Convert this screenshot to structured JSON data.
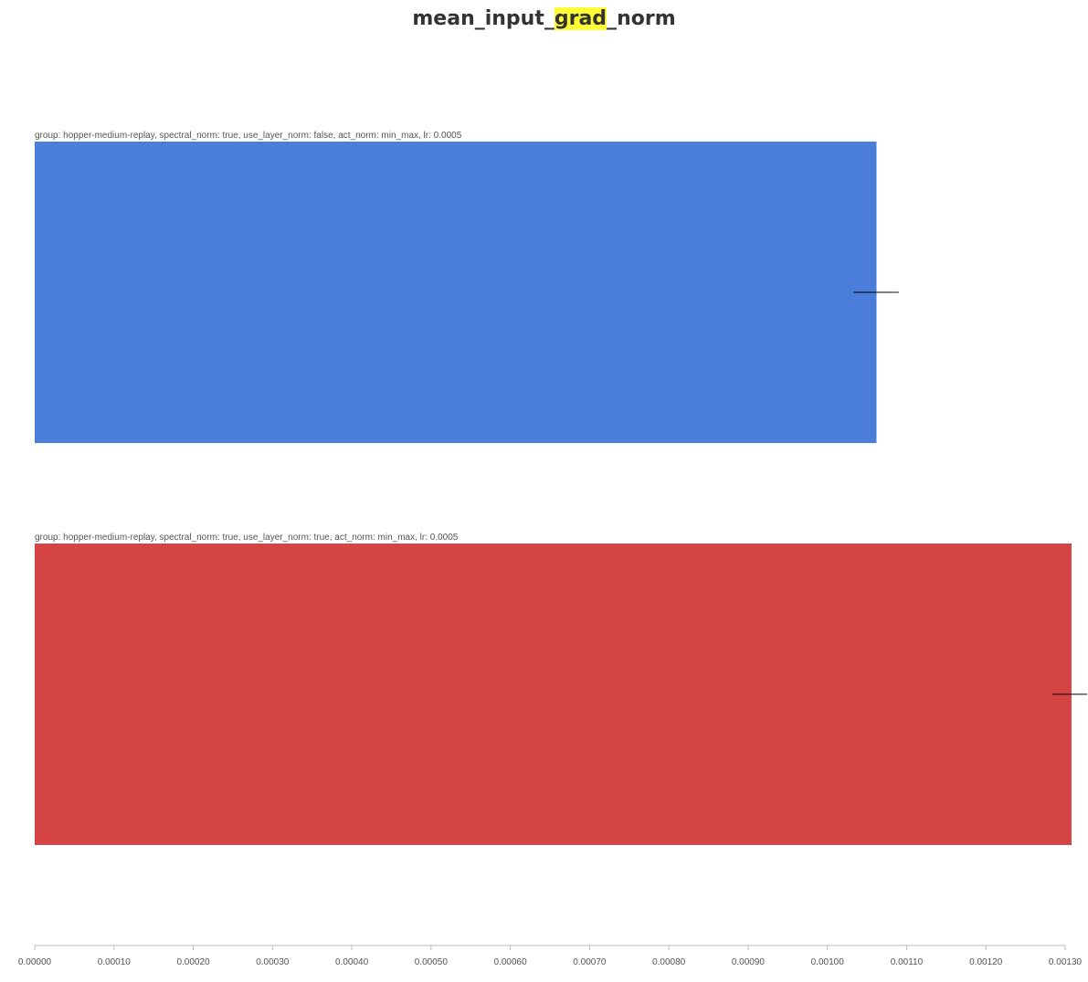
{
  "title": {
    "before": "mean_input_",
    "highlight": "grad",
    "after": "_norm"
  },
  "chart_data": {
    "type": "bar",
    "orientation": "horizontal",
    "title": "mean_input_grad_norm",
    "xlim": [
      0,
      0.0013
    ],
    "x_ticks": [
      "0.00000",
      "0.00010",
      "0.00020",
      "0.00030",
      "0.00040",
      "0.00050",
      "0.00060",
      "0.00070",
      "0.00080",
      "0.00090",
      "0.00100",
      "0.00110",
      "0.00120",
      "0.00130"
    ],
    "x_tick_values": [
      0,
      0.0001,
      0.0002,
      0.0003,
      0.0004,
      0.0005,
      0.0006,
      0.0007,
      0.0008,
      0.0009,
      0.001,
      0.0011,
      0.0012,
      0.0013
    ],
    "series": [
      {
        "name": "group: hopper-medium-replay, spectral_norm: true, use_layer_norm: false, act_norm: min_max, lr: 0.0005",
        "value": 0.001062,
        "error_low": 0.001033,
        "error_high": 0.00109,
        "color": "#4a7ed9"
      },
      {
        "name": "group: hopper-medium-replay, spectral_norm: true, use_layer_norm: true, act_norm: min_max, lr: 0.0005",
        "value": 0.001308,
        "error_low": 0.001284,
        "error_high": 0.00133,
        "color": "#d44444"
      }
    ],
    "grid": false
  }
}
